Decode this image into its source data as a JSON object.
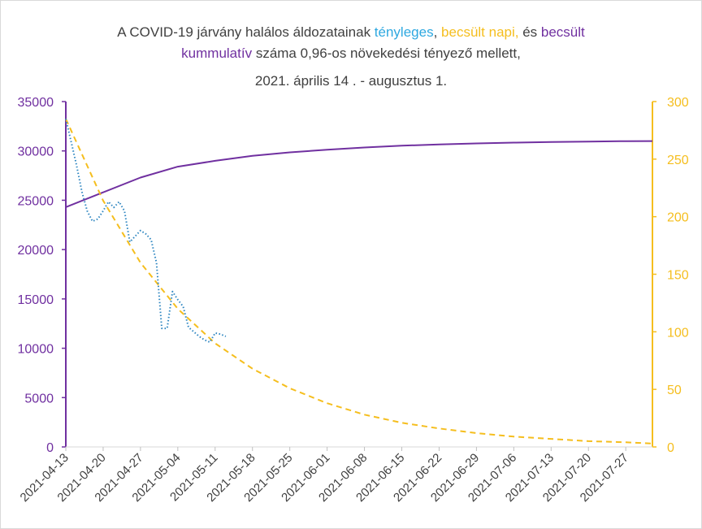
{
  "chart_data": {
    "type": "line",
    "title": {
      "segments_line1": [
        {
          "text": "A COVID-19 járvány halálos áldozatainak ",
          "color": "#404040"
        },
        {
          "text": "tényleges",
          "color": "#2ea8e0"
        },
        {
          "text": ", ",
          "color": "#404040"
        },
        {
          "text": "becsült napi,",
          "color": "#f5be1e"
        },
        {
          "text": "  és ",
          "color": "#404040"
        },
        {
          "text": "becsült",
          "color": "#7030a0"
        }
      ],
      "segments_line2": [
        {
          "text": "kummulatív",
          "color": "#7030a0"
        },
        {
          "text": " száma  0,96-os növekedési tényező mellett,",
          "color": "#404040"
        }
      ],
      "line3": "2021. április 14 . - augusztus 1."
    },
    "x_start_date": "2021-04-13",
    "x_end_date": "2021-08-01",
    "x_ticks": [
      "2021-04-13",
      "2021-04-20",
      "2021-04-27",
      "2021-05-04",
      "2021-05-11",
      "2021-05-18",
      "2021-05-25",
      "2021-06-01",
      "2021-06-08",
      "2021-06-15",
      "2021-06-22",
      "2021-06-29",
      "2021-07-06",
      "2021-07-13",
      "2021-07-20",
      "2021-07-27"
    ],
    "y_left": {
      "min": 0,
      "max": 35000,
      "ticks": [
        "0",
        "5000",
        "10000",
        "15000",
        "20000",
        "25000",
        "30000",
        "35000"
      ],
      "color": "#7030a0"
    },
    "y_right": {
      "min": 0,
      "max": 300,
      "ticks": [
        "0",
        "50",
        "100",
        "150",
        "200",
        "250",
        "300"
      ],
      "color": "#f5be1e"
    },
    "series": [
      {
        "axis": "left",
        "style": "solid",
        "color": "#7030a0",
        "x": [
          "2021-04-13",
          "2021-04-20",
          "2021-04-27",
          "2021-05-04",
          "2021-05-11",
          "2021-05-18",
          "2021-05-25",
          "2021-06-01",
          "2021-06-08",
          "2021-06-15",
          "2021-06-22",
          "2021-06-29",
          "2021-07-06",
          "2021-07-13",
          "2021-07-20",
          "2021-07-27",
          "2021-08-01"
        ],
        "y": [
          24300,
          25800,
          27300,
          28400,
          29000,
          29500,
          29850,
          30120,
          30350,
          30530,
          30660,
          30760,
          30840,
          30900,
          30950,
          30990,
          31000
        ]
      },
      {
        "axis": "right",
        "style": "dashed",
        "color": "#f5be1e",
        "x": [
          "2021-04-13",
          "2021-04-20",
          "2021-04-27",
          "2021-05-04",
          "2021-05-11",
          "2021-05-18",
          "2021-05-25",
          "2021-06-01",
          "2021-06-08",
          "2021-06-15",
          "2021-06-22",
          "2021-06-29",
          "2021-07-06",
          "2021-07-13",
          "2021-07-20",
          "2021-07-27",
          "2021-08-01"
        ],
        "y": [
          285,
          214,
          160,
          120,
          90,
          68,
          51,
          38,
          28,
          21,
          16,
          12,
          9,
          7,
          5,
          4,
          3
        ]
      },
      {
        "axis": "right",
        "style": "dotted",
        "color": "#2e86c1",
        "x": [
          "2021-04-13",
          "2021-04-14",
          "2021-04-15",
          "2021-04-16",
          "2021-04-17",
          "2021-04-18",
          "2021-04-19",
          "2021-04-20",
          "2021-04-21",
          "2021-04-22",
          "2021-04-23",
          "2021-04-24",
          "2021-04-25",
          "2021-04-26",
          "2021-04-27",
          "2021-04-28",
          "2021-04-29",
          "2021-04-30",
          "2021-05-01",
          "2021-05-02",
          "2021-05-03",
          "2021-05-04",
          "2021-05-05",
          "2021-05-06",
          "2021-05-07",
          "2021-05-08",
          "2021-05-09",
          "2021-05-10",
          "2021-05-11",
          "2021-05-12",
          "2021-05-13"
        ],
        "y": [
          285,
          265,
          245,
          222,
          205,
          196,
          198,
          205,
          213,
          208,
          213,
          205,
          178,
          183,
          188,
          185,
          180,
          160,
          103,
          103,
          135,
          128,
          122,
          104,
          100,
          96,
          93,
          91,
          99,
          98,
          96
        ]
      }
    ]
  }
}
